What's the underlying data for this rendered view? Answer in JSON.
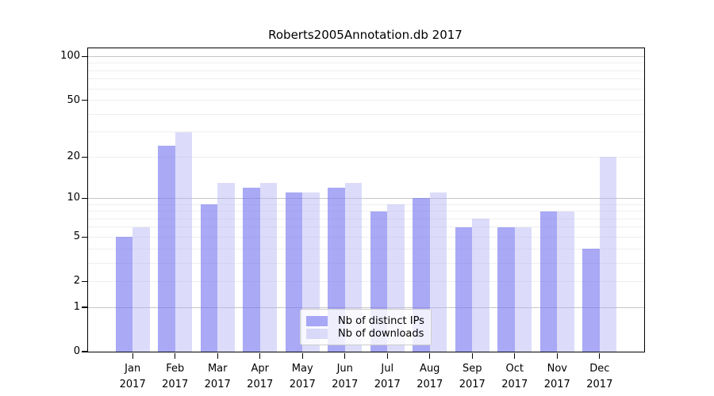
{
  "chart_data": {
    "type": "bar",
    "title": "Roberts2005Annotation.db 2017",
    "categories": [
      "Jan 2017",
      "Feb 2017",
      "Mar 2017",
      "Apr 2017",
      "May 2017",
      "Jun 2017",
      "Jul 2017",
      "Aug 2017",
      "Sep 2017",
      "Oct 2017",
      "Nov 2017",
      "Dec 2017"
    ],
    "series": [
      {
        "name": "Nb of distinct IPs",
        "color": "rgba(116,116,241,0.62)",
        "values": [
          5,
          24,
          9,
          12,
          11,
          12,
          8,
          10,
          6,
          6,
          8,
          4
        ]
      },
      {
        "name": "Nb of downloads",
        "color": "rgba(177,177,243,0.45)",
        "values": [
          6,
          30,
          13,
          13,
          11,
          13,
          9,
          11,
          7,
          6,
          8,
          20
        ]
      }
    ],
    "yscale": "log1p",
    "ylim": [
      0,
      114
    ],
    "yticks": [
      0,
      1,
      2,
      5,
      10,
      20,
      50,
      100
    ],
    "minor_gridlines": [
      2,
      3,
      4,
      5,
      6,
      7,
      8,
      9,
      20,
      30,
      40,
      50,
      60,
      70,
      80,
      90
    ],
    "major_gridlines": [
      1,
      10,
      100
    ],
    "grid": true,
    "legend_position": "bottom-center",
    "colors": {
      "distinct_ips_bar": "#aaaaf6",
      "downloads_bar": "#dadaf9",
      "minor_grid": "#efefef",
      "major_grid": "#c6c6c6",
      "axis": "#000000"
    }
  }
}
